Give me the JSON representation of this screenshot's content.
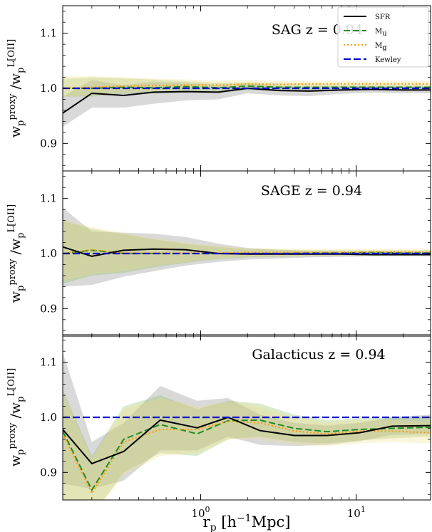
{
  "chart_data": [
    {
      "type": "line",
      "title": "SAG z = 0.94",
      "xlabel": "r_p [h^-1 Mpc]",
      "ylabel": "w_p^proxy / w_p^L[OII]",
      "xscale": "log",
      "xlim": [
        0.13,
        30
      ],
      "ylim": [
        0.85,
        1.15
      ],
      "yticks": [
        "0.9",
        "1.0",
        "1.1"
      ],
      "legend": {
        "placement": "top-right",
        "entries": [
          "SFR",
          "M_u",
          "M_g",
          "Kewley"
        ]
      },
      "x": [
        0.13,
        0.2,
        0.32,
        0.5,
        0.8,
        1.3,
        2.0,
        3.2,
        5.0,
        8.0,
        12.6,
        20,
        30
      ],
      "series": [
        {
          "name": "SFR",
          "color": "#000000",
          "dash": "solid",
          "values": [
            0.955,
            0.991,
            0.987,
            0.993,
            0.994,
            0.993,
            1.0,
            0.996,
            0.995,
            0.997,
            0.998,
            0.997,
            0.997
          ],
          "band_low": [
            0.93,
            0.965,
            0.965,
            0.972,
            0.978,
            0.98,
            0.991,
            0.987,
            0.986,
            0.99,
            0.992,
            0.991,
            0.991
          ],
          "band_high": [
            0.985,
            1.015,
            1.006,
            1.012,
            1.01,
            1.006,
            1.009,
            1.004,
            1.003,
            1.004,
            1.004,
            1.003,
            1.003
          ],
          "band_color": "#808080"
        },
        {
          "name": "M_u",
          "color": "#228b22",
          "dash": "dashed",
          "values": [
            1.0,
            1.0,
            1.002,
            1.001,
            1.003,
            1.001,
            1.004,
            1.002,
            1.002,
            1.002,
            1.002,
            1.002,
            1.002
          ],
          "band_low": [
            0.985,
            0.985,
            0.99,
            0.99,
            0.993,
            0.993,
            0.996,
            0.995,
            0.996,
            0.997,
            0.997,
            0.997,
            0.997
          ],
          "band_high": [
            1.017,
            1.02,
            1.018,
            1.016,
            1.013,
            1.01,
            1.011,
            1.009,
            1.008,
            1.007,
            1.007,
            1.007,
            1.007
          ],
          "band_color": "#88bb55"
        },
        {
          "name": "M_g",
          "color": "#ff9900",
          "dash": "dotted",
          "values": [
            1.0,
            1.002,
            1.004,
            1.005,
            1.006,
            1.006,
            1.008,
            1.007,
            1.008,
            1.008,
            1.008,
            1.008,
            1.008
          ],
          "band_low": [
            0.985,
            0.988,
            0.993,
            0.995,
            0.997,
            0.998,
            1.0,
            1.0,
            1.001,
            1.002,
            1.002,
            1.002,
            1.002
          ],
          "band_high": [
            1.022,
            1.022,
            1.02,
            1.018,
            1.016,
            1.014,
            1.015,
            1.013,
            1.013,
            1.013,
            1.013,
            1.013,
            1.013
          ],
          "band_color": "#f3dd88"
        },
        {
          "name": "Kewley",
          "color": "#0000cc",
          "dash": "longdash",
          "values": [
            1,
            1,
            1,
            1,
            1,
            1,
            1,
            1,
            1,
            1,
            1,
            1,
            1
          ]
        }
      ]
    },
    {
      "type": "line",
      "title": "SAGE z = 0.94",
      "xlabel": "r_p [h^-1 Mpc]",
      "ylabel": "w_p^proxy / w_p^L[OII]",
      "xscale": "log",
      "xlim": [
        0.13,
        30
      ],
      "ylim": [
        0.85,
        1.15
      ],
      "yticks": [
        "0.9",
        "1.0",
        "1.1"
      ],
      "x": [
        0.13,
        0.2,
        0.32,
        0.5,
        0.8,
        1.3,
        2.0,
        3.2,
        5.0,
        8.0,
        12.6,
        20,
        30
      ],
      "series": [
        {
          "name": "SFR",
          "color": "#000000",
          "dash": "solid",
          "values": [
            1.012,
            0.995,
            1.006,
            1.008,
            1.007,
            1.0,
            0.999,
            0.999,
            0.999,
            0.999,
            0.998,
            0.998,
            0.998
          ],
          "band_low": [
            0.94,
            0.943,
            0.958,
            0.968,
            0.978,
            0.985,
            0.989,
            0.991,
            0.993,
            0.994,
            0.995,
            0.995,
            0.995
          ],
          "band_high": [
            1.083,
            1.04,
            1.038,
            1.036,
            1.03,
            1.018,
            1.01,
            1.007,
            1.005,
            1.004,
            1.003,
            1.003,
            1.003
          ],
          "band_color": "#808080"
        },
        {
          "name": "M_u",
          "color": "#228b22",
          "dash": "dashed",
          "values": [
            1.0,
            1.006,
            1.0,
            1.0,
            1.0,
            1.0,
            1.0,
            1.0,
            1.001,
            1.001,
            1.002,
            1.001,
            1.001
          ],
          "band_low": [
            0.945,
            0.96,
            0.965,
            0.975,
            0.983,
            0.99,
            0.993,
            0.994,
            0.995,
            0.996,
            0.996,
            0.996,
            0.996
          ],
          "band_high": [
            1.06,
            1.045,
            1.035,
            1.026,
            1.018,
            1.012,
            1.008,
            1.007,
            1.006,
            1.006,
            1.006,
            1.006,
            1.006
          ],
          "band_color": "#88bb55"
        },
        {
          "name": "M_g",
          "color": "#ff9900",
          "dash": "dotted",
          "values": [
            1.0,
            1.007,
            1.001,
            1.001,
            1.001,
            1.001,
            1.002,
            1.002,
            1.002,
            1.002,
            1.003,
            1.003,
            1.003
          ],
          "band_low": [
            0.95,
            0.962,
            0.968,
            0.977,
            0.985,
            0.991,
            0.994,
            0.995,
            0.996,
            0.997,
            0.997,
            0.997,
            0.997
          ],
          "band_high": [
            1.062,
            1.048,
            1.037,
            1.028,
            1.02,
            1.014,
            1.01,
            1.009,
            1.008,
            1.008,
            1.008,
            1.008,
            1.008
          ],
          "band_color": "#f3dd88"
        },
        {
          "name": "Kewley",
          "color": "#0000cc",
          "dash": "longdash",
          "values": [
            1,
            1,
            1,
            1,
            1,
            1,
            1,
            1,
            1,
            1,
            1,
            1,
            1
          ]
        }
      ]
    },
    {
      "type": "line",
      "title": "Galacticus z = 0.94",
      "xlabel": "r_p [h^-1 Mpc]",
      "ylabel": "w_p^proxy / w_p^L[OII]",
      "xscale": "log",
      "xlim": [
        0.13,
        30
      ],
      "ylim": [
        0.85,
        1.15
      ],
      "yticks": [
        "0.9",
        "1.0",
        "1.1"
      ],
      "xticks": [
        "10^0",
        "10^1"
      ],
      "x": [
        0.13,
        0.2,
        0.32,
        0.55,
        0.95,
        1.5,
        2.4,
        4.0,
        6.5,
        10.5,
        17,
        30
      ],
      "series": [
        {
          "name": "SFR",
          "color": "#000000",
          "dash": "solid",
          "values": [
            0.978,
            0.916,
            0.938,
            0.995,
            0.981,
            1.0,
            0.976,
            0.967,
            0.967,
            0.972,
            0.984,
            0.985
          ],
          "band_low": [
            0.88,
            0.87,
            0.885,
            0.94,
            0.94,
            0.965,
            0.95,
            0.948,
            0.95,
            0.957,
            0.968,
            0.97
          ],
          "band_high": [
            1.118,
            0.955,
            0.99,
            1.057,
            1.03,
            1.035,
            1.005,
            0.99,
            0.985,
            0.99,
            1.0,
            1.005
          ],
          "band_color": "#808080"
        },
        {
          "name": "M_u",
          "color": "#228b22",
          "dash": "dashed",
          "values": [
            0.975,
            0.868,
            0.96,
            0.987,
            0.97,
            0.994,
            0.995,
            0.98,
            0.974,
            0.978,
            0.98,
            0.982
          ],
          "band_low": [
            0.85,
            0.82,
            0.9,
            0.935,
            0.93,
            0.96,
            0.965,
            0.955,
            0.953,
            0.958,
            0.962,
            0.965
          ],
          "band_high": [
            1.05,
            0.93,
            1.02,
            1.04,
            1.015,
            1.03,
            1.025,
            1.005,
            0.995,
            0.998,
            1.0,
            1.002
          ],
          "band_color": "#88bb55"
        },
        {
          "name": "M_g",
          "color": "#ff9900",
          "dash": "dotted",
          "values": [
            0.97,
            0.862,
            0.955,
            0.978,
            0.978,
            0.993,
            0.99,
            0.975,
            0.97,
            0.975,
            0.975,
            0.972
          ],
          "band_low": [
            0.85,
            0.82,
            0.895,
            0.93,
            0.935,
            0.96,
            0.96,
            0.95,
            0.948,
            0.953,
            0.955,
            0.953
          ],
          "band_high": [
            1.045,
            0.925,
            1.015,
            1.035,
            1.02,
            1.028,
            1.02,
            1.0,
            0.99,
            0.995,
            0.995,
            0.992
          ],
          "band_color": "#f3dd88"
        },
        {
          "name": "Kewley",
          "color": "#0000cc",
          "dash": "longdash",
          "values": [
            1,
            1,
            1,
            1,
            1,
            1,
            1,
            1,
            1,
            1,
            1,
            1
          ]
        }
      ]
    }
  ]
}
